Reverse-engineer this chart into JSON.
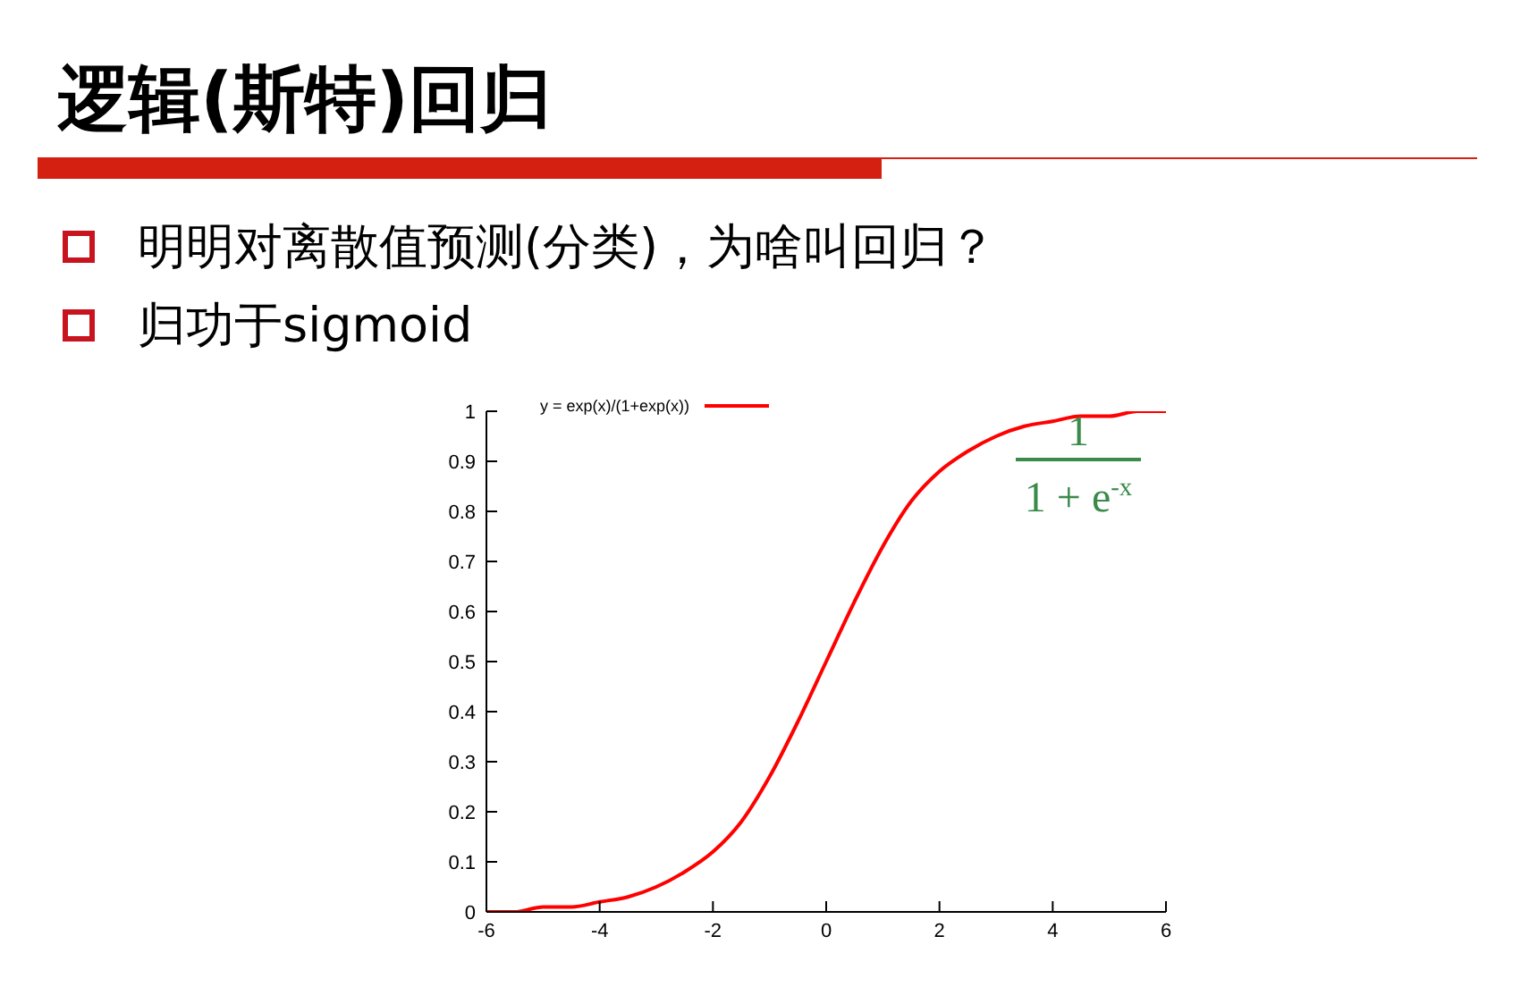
{
  "chart_data": {
    "type": "line",
    "title": "逻辑(斯特)回归",
    "annotations": [
      "明明对离散值预测(分类)，为啥叫回归？",
      "归功于sigmoid",
      "1",
      "1 + e$^{-x}$"
    ],
    "x": [
      -6,
      -5.5,
      -5,
      -4.5,
      -4,
      -3.5,
      -3,
      -2.5,
      -2,
      -1.5,
      -1,
      -0.5,
      0,
      0.5,
      1,
      1.5,
      2,
      2.5,
      3,
      3.5,
      4,
      4.5,
      5,
      5.5,
      6
    ],
    "series": [
      {
        "name": "y = exp(x)/(1+exp(x))",
        "color": "#ff0000",
        "values": [
          0.0,
          0.0,
          0.01,
          0.01,
          0.02,
          0.03,
          0.05,
          0.08,
          0.12,
          0.18,
          0.27,
          0.38,
          0.5,
          0.62,
          0.73,
          0.82,
          0.88,
          0.92,
          0.95,
          0.97,
          0.98,
          0.99,
          0.99,
          1.0,
          1.0
        ]
      }
    ],
    "xlim": [
      -6,
      6
    ],
    "xticks": [
      -6,
      -4,
      -2,
      0,
      2,
      4,
      6
    ],
    "ylim": [
      0,
      1
    ],
    "yticks": [
      0,
      0.1,
      0.2,
      0.3,
      0.4,
      0.5,
      0.6,
      0.7,
      0.8,
      0.9,
      1
    ],
    "legend": "top",
    "marker": "none",
    "line_style": "solid",
    "grid": false
  }
}
